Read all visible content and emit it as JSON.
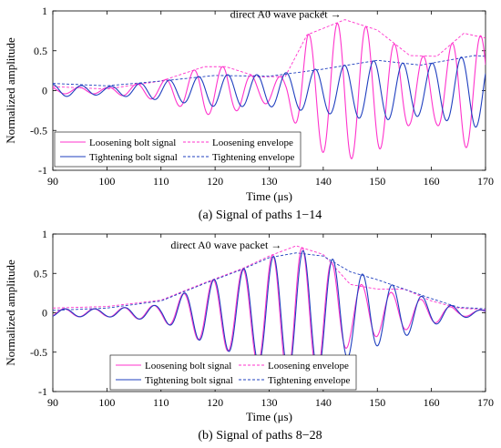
{
  "chart_data": [
    {
      "type": "line",
      "caption": "(a) Signal of paths 1−14",
      "xlabel": "Time (μs)",
      "ylabel": "Normalized amplitude",
      "xlim": [
        90,
        170
      ],
      "ylim": [
        -1,
        1
      ],
      "xticks": [
        "90",
        "100",
        "110",
        "120",
        "130",
        "140",
        "150",
        "160",
        "170"
      ],
      "yticks": [
        "-1",
        "-0.5",
        "0",
        "0.5",
        "1"
      ],
      "annotation": {
        "text": "direct A0 wave packet →",
        "target": [
          144,
          0.88
        ]
      },
      "legend_position": "bottom-left",
      "series": [
        {
          "name": "Loosening bolt signal",
          "style": "solid",
          "color": "#ff33cc",
          "envelope_points": [
            [
              90,
              0.04
            ],
            [
              100,
              0.04
            ],
            [
              110,
              0.12
            ],
            [
              118,
              0.3
            ],
            [
              122,
              0.3
            ],
            [
              128,
              0.16
            ],
            [
              133,
              0.18
            ],
            [
              137,
              0.7
            ],
            [
              144,
              0.88
            ],
            [
              150,
              0.76
            ],
            [
              156,
              0.43
            ],
            [
              161,
              0.43
            ],
            [
              166,
              0.72
            ],
            [
              170,
              0.68
            ]
          ],
          "period": 5.3,
          "phase": 0.6,
          "bias_points": [
            [
              90,
              0.0
            ],
            [
              170,
              0.0
            ]
          ]
        },
        {
          "name": "Tightening bolt signal",
          "style": "solid",
          "color": "#1f3fbf",
          "envelope_points": [
            [
              90,
              0.08
            ],
            [
              100,
              0.05
            ],
            [
              110,
              0.12
            ],
            [
              120,
              0.2
            ],
            [
              130,
              0.2
            ],
            [
              140,
              0.28
            ],
            [
              150,
              0.38
            ],
            [
              158,
              0.32
            ],
            [
              163,
              0.38
            ],
            [
              168,
              0.46
            ],
            [
              170,
              0.44
            ]
          ],
          "period": 5.4,
          "phase": 2.2,
          "bias_points": [
            [
              90,
              0.0
            ],
            [
              170,
              0.0
            ]
          ]
        },
        {
          "name": "Loosening envelope",
          "style": "dashed",
          "color": "#ff33cc",
          "points": [
            [
              90,
              0.05
            ],
            [
              100,
              0.02
            ],
            [
              110,
              0.12
            ],
            [
              118,
              0.3
            ],
            [
              122,
              0.3
            ],
            [
              128,
              0.17
            ],
            [
              133,
              0.18
            ],
            [
              137,
              0.7
            ],
            [
              144,
              0.89
            ],
            [
              150,
              0.76
            ],
            [
              156,
              0.44
            ],
            [
              161,
              0.43
            ],
            [
              166,
              0.72
            ],
            [
              170,
              0.66
            ]
          ]
        },
        {
          "name": "Tightening envelope",
          "style": "dashed",
          "color": "#1f3fbf",
          "points": [
            [
              90,
              0.09
            ],
            [
              100,
              0.06
            ],
            [
              110,
              0.12
            ],
            [
              120,
              0.19
            ],
            [
              130,
              0.18
            ],
            [
              140,
              0.27
            ],
            [
              150,
              0.38
            ],
            [
              158,
              0.32
            ],
            [
              163,
              0.38
            ],
            [
              168,
              0.44
            ],
            [
              170,
              0.43
            ]
          ]
        }
      ]
    },
    {
      "type": "line",
      "caption": "(b) Signal of paths 8−28",
      "xlabel": "Time (μs)",
      "ylabel": "Normalized amplitude",
      "xlim": [
        90,
        170
      ],
      "ylim": [
        -1,
        1
      ],
      "xticks": [
        "90",
        "100",
        "110",
        "120",
        "130",
        "140",
        "150",
        "160",
        "170"
      ],
      "yticks": [
        "-1",
        "-0.5",
        "0",
        "0.5",
        "1"
      ],
      "annotation": {
        "text": "direct A0 wave packet →",
        "target": [
          133,
          0.78
        ]
      },
      "legend_position": "bottom-center",
      "series": [
        {
          "name": "Loosening bolt signal",
          "style": "solid",
          "color": "#ff33cc",
          "envelope_points": [
            [
              90,
              0.05
            ],
            [
              100,
              0.05
            ],
            [
              110,
              0.1
            ],
            [
              118,
              0.38
            ],
            [
              125,
              0.55
            ],
            [
              130,
              0.72
            ],
            [
              135,
              0.85
            ],
            [
              140,
              0.75
            ],
            [
              145,
              0.4
            ],
            [
              150,
              0.3
            ],
            [
              155,
              0.22
            ],
            [
              160,
              0.14
            ],
            [
              165,
              0.05
            ],
            [
              170,
              0.03
            ]
          ],
          "period": 5.5,
          "phase": 1.6,
          "bias_points": [
            [
              90,
              0.0
            ],
            [
              170,
              0.0
            ]
          ]
        },
        {
          "name": "Tightening bolt signal",
          "style": "solid",
          "color": "#1f3fbf",
          "envelope_points": [
            [
              90,
              0.05
            ],
            [
              100,
              0.05
            ],
            [
              110,
              0.1
            ],
            [
              118,
              0.38
            ],
            [
              125,
              0.55
            ],
            [
              130,
              0.7
            ],
            [
              135,
              0.8
            ],
            [
              140,
              0.75
            ],
            [
              145,
              0.55
            ],
            [
              150,
              0.42
            ],
            [
              155,
              0.3
            ],
            [
              160,
              0.16
            ],
            [
              165,
              0.07
            ],
            [
              170,
              0.03
            ]
          ],
          "period": 5.5,
          "phase": 1.4,
          "bias_points": [
            [
              90,
              0.0
            ],
            [
              170,
              0.0
            ]
          ]
        },
        {
          "name": "Loosening envelope",
          "style": "dashed",
          "color": "#ff33cc",
          "points": [
            [
              90,
              0.06
            ],
            [
              100,
              0.08
            ],
            [
              110,
              0.16
            ],
            [
              118,
              0.38
            ],
            [
              125,
              0.56
            ],
            [
              130,
              0.72
            ],
            [
              135,
              0.85
            ],
            [
              140,
              0.74
            ],
            [
              145,
              0.36
            ],
            [
              150,
              0.3
            ],
            [
              155,
              0.3
            ],
            [
              160,
              0.15
            ],
            [
              165,
              0.06
            ],
            [
              170,
              0.04
            ]
          ]
        },
        {
          "name": "Tightening envelope",
          "style": "dashed",
          "color": "#1f3fbf",
          "points": [
            [
              90,
              0.03
            ],
            [
              100,
              0.06
            ],
            [
              110,
              0.15
            ],
            [
              118,
              0.37
            ],
            [
              125,
              0.55
            ],
            [
              130,
              0.7
            ],
            [
              135,
              0.76
            ],
            [
              140,
              0.72
            ],
            [
              145,
              0.52
            ],
            [
              150,
              0.42
            ],
            [
              155,
              0.3
            ],
            [
              160,
              0.18
            ],
            [
              165,
              0.07
            ],
            [
              170,
              0.05
            ]
          ]
        }
      ]
    }
  ]
}
